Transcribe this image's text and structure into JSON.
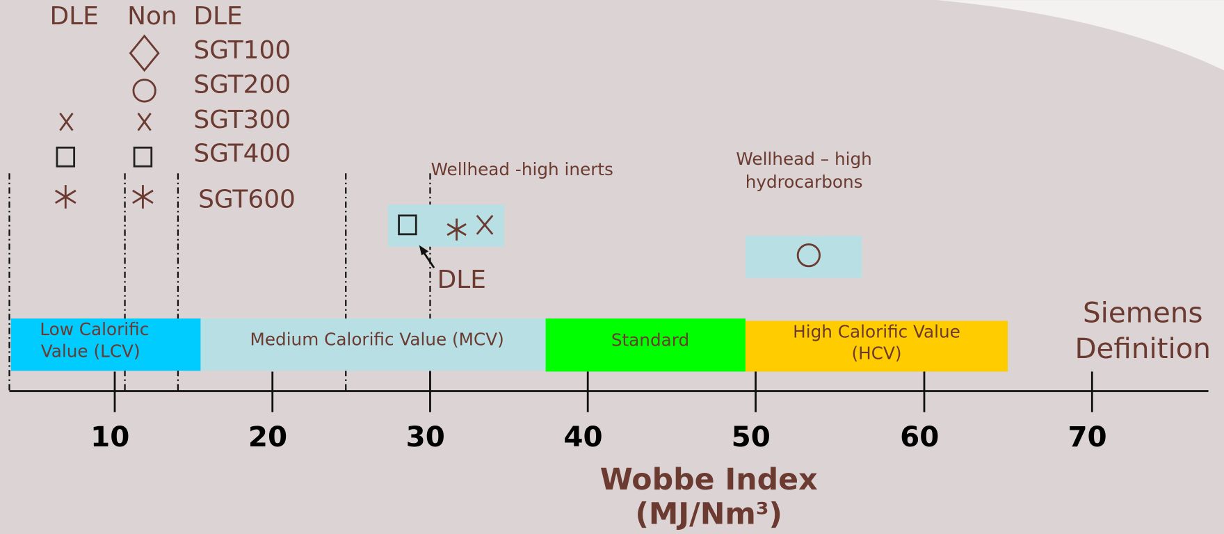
{
  "legend": {
    "headers": [
      "DLE",
      "Non",
      "DLE"
    ],
    "models": [
      "SGT100",
      "SGT200",
      "SGT300",
      "SGT400",
      "SGT600"
    ]
  },
  "annotations": {
    "inerts": "Wellhead -high inerts",
    "dle": "DLE",
    "hydrocarbons": [
      "Wellhead – high",
      "hydrocarbons"
    ]
  },
  "bands": {
    "lcv": [
      "Low Calorific",
      "Value (LCV)"
    ],
    "mcv": "Medium Calorific Value (MCV)",
    "standard": "Standard",
    "hcv": [
      "High Calorific Value",
      "(HCV)"
    ]
  },
  "definition": [
    "Siemens",
    "Definition"
  ],
  "axis": {
    "ticks": [
      "10",
      "20",
      "30",
      "40",
      "50",
      "60",
      "70"
    ],
    "title": [
      "Wobbe Index",
      "(MJ/Nm³)"
    ]
  }
}
